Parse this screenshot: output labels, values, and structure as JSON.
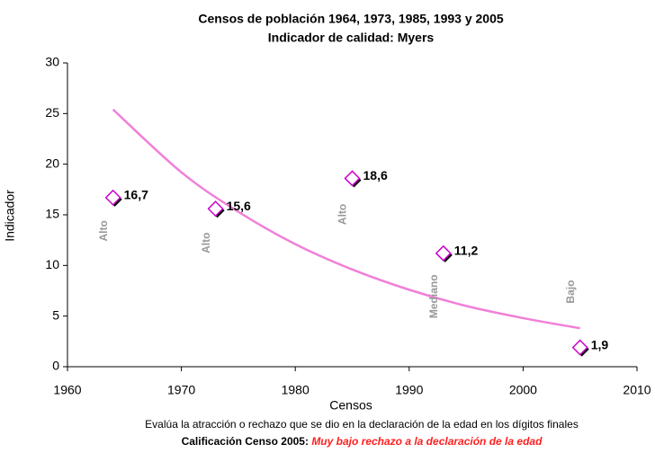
{
  "chart_data": {
    "type": "scatter",
    "title": "Censos de población 1964, 1973, 1985, 1993 y 2005",
    "subtitle": "Indicador de calidad: Myers",
    "x_label": "Censos",
    "y_label": "Indicador",
    "xlim": [
      1960,
      2010
    ],
    "xticks": [
      1960,
      1970,
      1980,
      1990,
      2000,
      2010
    ],
    "ylim": [
      0,
      30
    ],
    "yticks": [
      0,
      5,
      10,
      15,
      20,
      25,
      30
    ],
    "series": [
      {
        "x": [
          1964,
          1973,
          1985,
          1993,
          2005
        ],
        "values": [
          16.7,
          15.6,
          18.6,
          11.2,
          1.9
        ],
        "value_labels": [
          "16,7",
          "15,6",
          "18,6",
          "11,2",
          "1,9"
        ],
        "annotations": [
          "Alto",
          "Alto",
          "Alto",
          "Mediano",
          "Bajo"
        ],
        "color": "#cc00cc"
      }
    ],
    "trendline": {
      "x": [
        1964,
        1970,
        1975,
        1980,
        1985,
        1990,
        1995,
        2000,
        2005
      ],
      "values": [
        25.4,
        19.2,
        15.3,
        12.1,
        9.6,
        7.6,
        6.0,
        4.8,
        3.8
      ],
      "color": "#f080d8"
    },
    "footer": "Evalúa la atracción o rechazo que se dio en la declaración de la edad en los dígitos finales",
    "rating_label": "Calificación Censo 2005:",
    "rating_value": "Muy bajo  rechazo a la declaración de la edad"
  }
}
